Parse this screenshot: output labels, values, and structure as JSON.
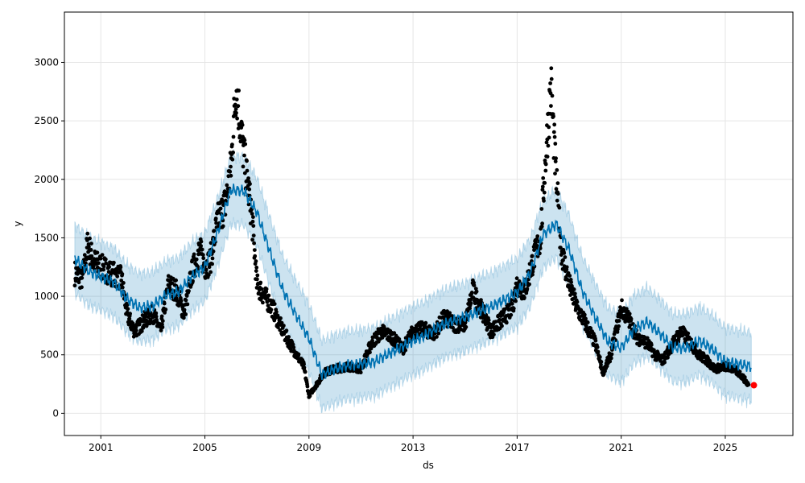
{
  "chart_data": {
    "type": "line",
    "title": "",
    "xlabel": "ds",
    "ylabel": "y",
    "xlim": [
      1999.6,
      2027.6
    ],
    "ylim": [
      -190,
      3430
    ],
    "grid": true,
    "x_ticks": [
      2001,
      2005,
      2009,
      2013,
      2017,
      2021,
      2025
    ],
    "x_tick_labels": [
      "2001",
      "2005",
      "2009",
      "2013",
      "2017",
      "2021",
      "2025"
    ],
    "y_ticks": [
      0,
      500,
      1000,
      1500,
      2000,
      2500,
      3000
    ],
    "y_tick_labels": [
      "0",
      "500",
      "1000",
      "1500",
      "2000",
      "2500",
      "3000"
    ],
    "colors": {
      "observed": "#000000",
      "forecast": "#0072B2",
      "interval": "#0072B2",
      "highlight": "#ff0000",
      "grid": "#e5e5e5"
    },
    "interval_halfwidth": 290,
    "series": [
      {
        "role": "forecast",
        "x": [
          2000.0,
          2000.5,
          2001.0,
          2001.5,
          2002.0,
          2002.5,
          2003.0,
          2003.5,
          2004.0,
          2004.5,
          2005.0,
          2005.5,
          2006.0,
          2006.5,
          2007.0,
          2007.5,
          2008.0,
          2008.5,
          2009.0,
          2009.5,
          2010.0,
          2010.5,
          2011.0,
          2011.5,
          2012.0,
          2012.5,
          2013.0,
          2013.5,
          2014.0,
          2014.5,
          2015.0,
          2015.5,
          2016.0,
          2016.5,
          2017.0,
          2017.5,
          2018.0,
          2018.5,
          2019.0,
          2019.5,
          2020.0,
          2020.5,
          2021.0,
          2021.5,
          2022.0,
          2022.5,
          2023.0,
          2023.5,
          2024.0,
          2024.5,
          2025.0,
          2025.5,
          2026.0
        ],
        "y": [
          1320,
          1220,
          1170,
          1120,
          980,
          900,
          920,
          1010,
          1040,
          1170,
          1250,
          1560,
          1910,
          1900,
          1720,
          1380,
          1050,
          840,
          640,
          330,
          380,
          410,
          420,
          440,
          500,
          560,
          620,
          670,
          740,
          790,
          820,
          870,
          910,
          970,
          1030,
          1200,
          1530,
          1620,
          1400,
          1050,
          820,
          610,
          560,
          720,
          780,
          680,
          560,
          560,
          620,
          550,
          440,
          420,
          400
        ]
      },
      {
        "role": "observed",
        "anchors_x": [
          2000.0,
          2000.3,
          2000.5,
          2000.7,
          2001.0,
          2001.4,
          2001.8,
          2002.0,
          2002.3,
          2002.7,
          2003.0,
          2003.3,
          2003.6,
          2003.9,
          2004.2,
          2004.5,
          2004.8,
          2005.0,
          2005.2,
          2005.5,
          2005.8,
          2006.0,
          2006.2,
          2006.5,
          2006.8,
          2007.0,
          2007.3,
          2007.6,
          2008.0,
          2008.4,
          2008.8,
          2009.0,
          2009.3,
          2009.6,
          2010.0,
          2010.5,
          2011.0,
          2011.4,
          2011.8,
          2012.2,
          2012.6,
          2013.0,
          2013.4,
          2013.8,
          2014.2,
          2014.6,
          2015.0,
          2015.3,
          2015.6,
          2016.0,
          2016.4,
          2016.8,
          2017.0,
          2017.3,
          2017.6,
          2017.9,
          2018.1,
          2018.3,
          2018.5,
          2018.7,
          2019.0,
          2019.3,
          2019.6,
          2020.0,
          2020.3,
          2020.6,
          2021.0,
          2021.3,
          2021.6,
          2022.0,
          2022.3,
          2022.6,
          2023.0,
          2023.3,
          2023.6,
          2024.0,
          2024.3,
          2024.6,
          2025.0,
          2025.3,
          2025.6,
          2025.9
        ],
        "anchors_y": [
          1200,
          1150,
          1450,
          1300,
          1250,
          1200,
          1150,
          850,
          700,
          800,
          850,
          700,
          1100,
          1050,
          850,
          1200,
          1400,
          1250,
          1300,
          1650,
          1800,
          2100,
          2800,
          2200,
          1700,
          1100,
          1000,
          900,
          700,
          550,
          400,
          150,
          250,
          350,
          380,
          400,
          380,
          600,
          700,
          650,
          550,
          700,
          720,
          680,
          820,
          760,
          760,
          1050,
          900,
          700,
          800,
          900,
          1100,
          1050,
          1300,
          1500,
          2200,
          2800,
          2000,
          1400,
          1100,
          900,
          780,
          600,
          350,
          500,
          900,
          800,
          650,
          600,
          500,
          450,
          600,
          700,
          620,
          500,
          450,
          380,
          400,
          380,
          330,
          240
        ]
      },
      {
        "role": "last_point",
        "x": [
          2026.1
        ],
        "y": [
          240
        ]
      }
    ]
  }
}
